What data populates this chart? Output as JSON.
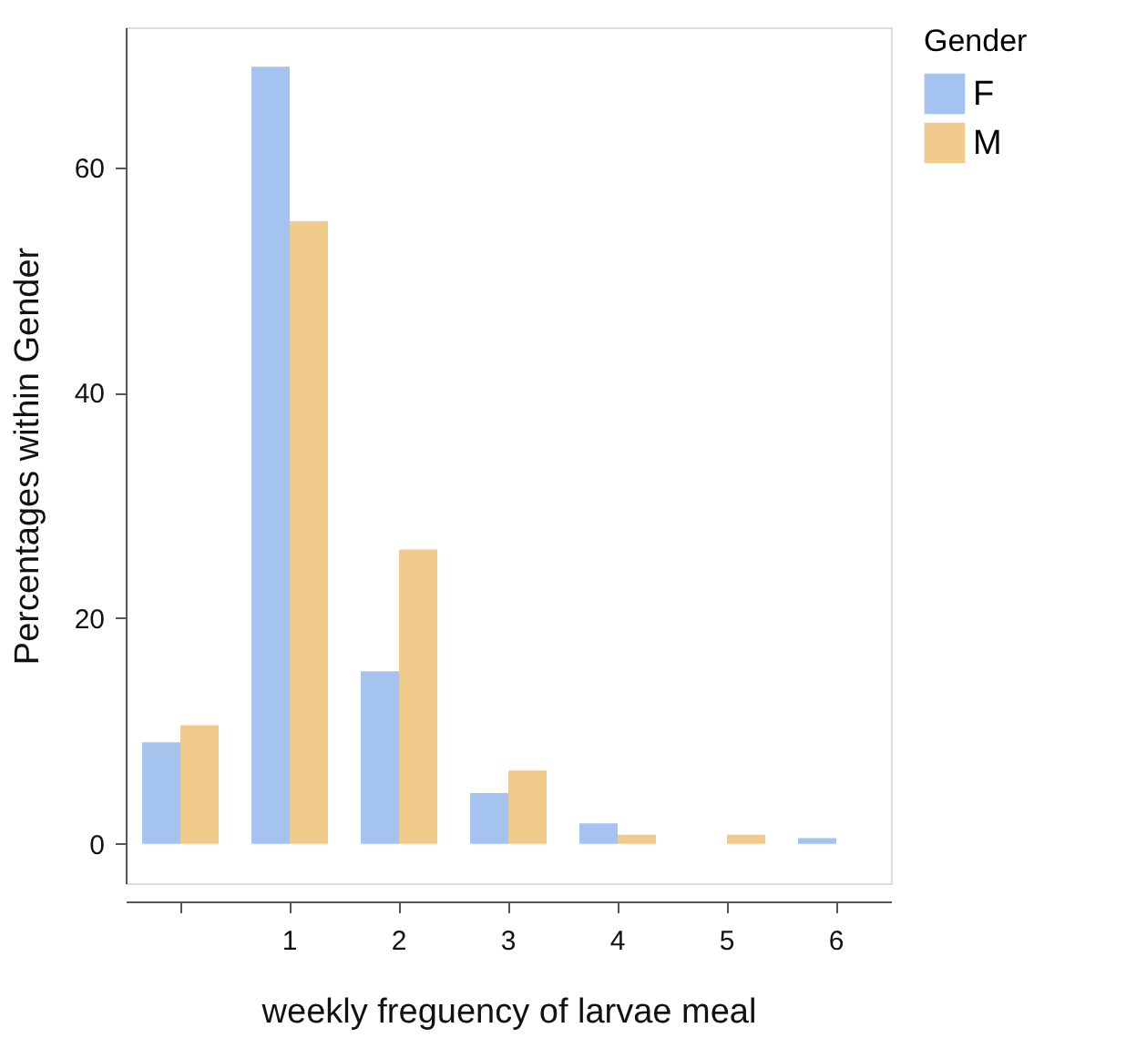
{
  "chart_data": {
    "type": "bar",
    "xlabel": "weekly freguency of larvae meal",
    "ylabel": "Percentages within Gender",
    "legend_title": "Gender",
    "categories": [
      null,
      "1",
      "2",
      "3",
      "4",
      "5",
      "6"
    ],
    "series": [
      {
        "name": "F",
        "color": "#a4c4ef",
        "values": [
          9.0,
          68.9,
          15.3,
          4.5,
          1.8,
          null,
          0.5
        ]
      },
      {
        "name": "M",
        "color": "#f1cb8c",
        "values": [
          10.5,
          55.2,
          26.1,
          6.5,
          0.8,
          0.8,
          null
        ]
      }
    ],
    "ylim": [
      -3.5,
      72.4
    ],
    "yticks": [
      0,
      20,
      40,
      60
    ],
    "grid": false,
    "legend": "right"
  }
}
